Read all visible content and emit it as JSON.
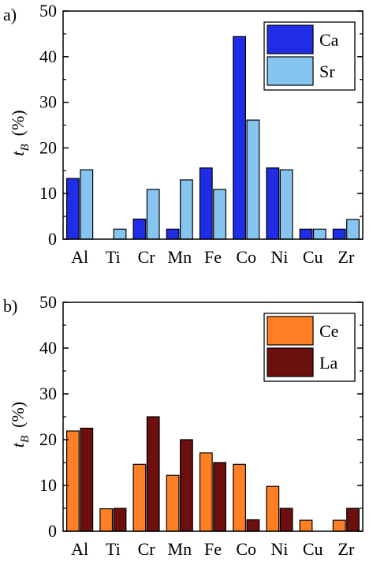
{
  "chart_data": [
    {
      "type": "bar",
      "panel_label": "a)",
      "ylabel_main": "t",
      "ylabel_sub": "B",
      "ylabel_unit": "(%)",
      "ylim": [
        0,
        50
      ],
      "yticks": [
        "0",
        "10",
        "20",
        "30",
        "40",
        "50"
      ],
      "categories": [
        "Al",
        "Ti",
        "Cr",
        "Mn",
        "Fe",
        "Co",
        "Ni",
        "Cu",
        "Zr"
      ],
      "legend_position": "top-right",
      "series": [
        {
          "name": "Ca",
          "color": "#1f2de6",
          "values": [
            13.3,
            0,
            4.4,
            2.2,
            15.6,
            44.4,
            15.6,
            2.2,
            2.2
          ]
        },
        {
          "name": "Sr",
          "color": "#86c5f0",
          "values": [
            15.2,
            2.2,
            10.9,
            13.0,
            10.9,
            26.1,
            15.2,
            2.2,
            4.3
          ]
        }
      ]
    },
    {
      "type": "bar",
      "panel_label": "b)",
      "ylabel_main": "t",
      "ylabel_sub": "B",
      "ylabel_unit": "(%)",
      "ylim": [
        0,
        50
      ],
      "yticks": [
        "0",
        "10",
        "20",
        "30",
        "40",
        "50"
      ],
      "categories": [
        "Al",
        "Ti",
        "Cr",
        "Mn",
        "Fe",
        "Co",
        "Ni",
        "Cu",
        "Zr"
      ],
      "legend_position": "top-right",
      "series": [
        {
          "name": "Ce",
          "color": "#ff7f24",
          "values": [
            21.9,
            4.9,
            14.6,
            12.2,
            17.1,
            14.6,
            9.8,
            2.4,
            2.4
          ]
        },
        {
          "name": "La",
          "color": "#6b0f0f",
          "values": [
            22.5,
            5.0,
            25.0,
            20.0,
            15.0,
            2.5,
            5.0,
            0,
            5.0
          ]
        }
      ]
    }
  ]
}
